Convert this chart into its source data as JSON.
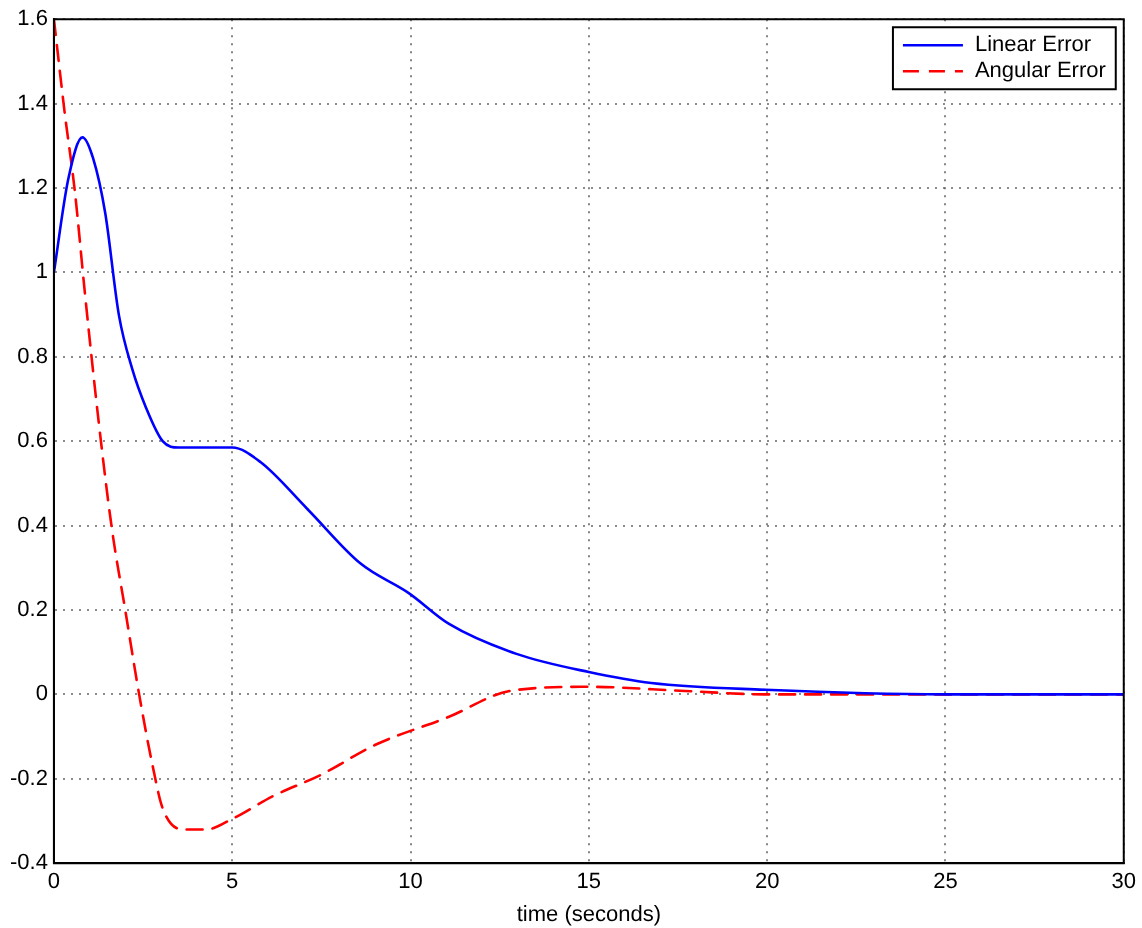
{
  "chart_data": {
    "type": "line",
    "xlabel": "time (seconds)",
    "xlim": [
      0,
      30
    ],
    "xticks": [
      0,
      5,
      10,
      15,
      20,
      25,
      30
    ],
    "ylim": [
      -0.4,
      1.6
    ],
    "yticks": [
      -0.4,
      -0.2,
      0,
      0.2,
      0.4,
      0.6,
      0.8,
      1,
      1.2,
      1.4,
      1.6
    ],
    "grid": true,
    "legend": "top right",
    "marker": "none",
    "series": [
      {
        "name": "Linear Error",
        "color": "#0000ff",
        "line_style": "solid",
        "x": [
          0,
          0.4,
          0.8,
          1.1,
          1.44,
          1.82,
          2.2,
          2.58,
          3.05,
          3.5,
          4.2,
          5,
          5.8,
          7.1,
          8.6,
          9.95,
          11.08,
          12.97,
          15,
          16.75,
          19.95,
          25,
          30
        ],
        "values": [
          1.0,
          1.22,
          1.32,
          1.27,
          1.14,
          0.9,
          0.77,
          0.68,
          0.6,
          0.585,
          0.585,
          0.585,
          0.55,
          0.44,
          0.31,
          0.24,
          0.167,
          0.096,
          0.053,
          0.027,
          0.011,
          0.0,
          0.0
        ]
      },
      {
        "name": "Angular Error",
        "color": "#ff0000",
        "line_style": "dashed",
        "x": [
          0,
          0.3,
          0.59,
          0.87,
          1.25,
          1.63,
          2.0,
          2.39,
          2.77,
          3.05,
          3.62,
          4.28,
          5,
          6.17,
          7.5,
          9.0,
          11.08,
          12.78,
          15,
          17.7,
          20,
          25,
          30
        ],
        "values": [
          1.6,
          1.38,
          1.19,
          0.95,
          0.65,
          0.39,
          0.2,
          0.0,
          -0.17,
          -0.27,
          -0.32,
          -0.32,
          -0.295,
          -0.24,
          -0.19,
          -0.12,
          -0.053,
          0.008,
          0.018,
          0.008,
          0.0,
          0.0,
          0.0
        ]
      }
    ]
  }
}
